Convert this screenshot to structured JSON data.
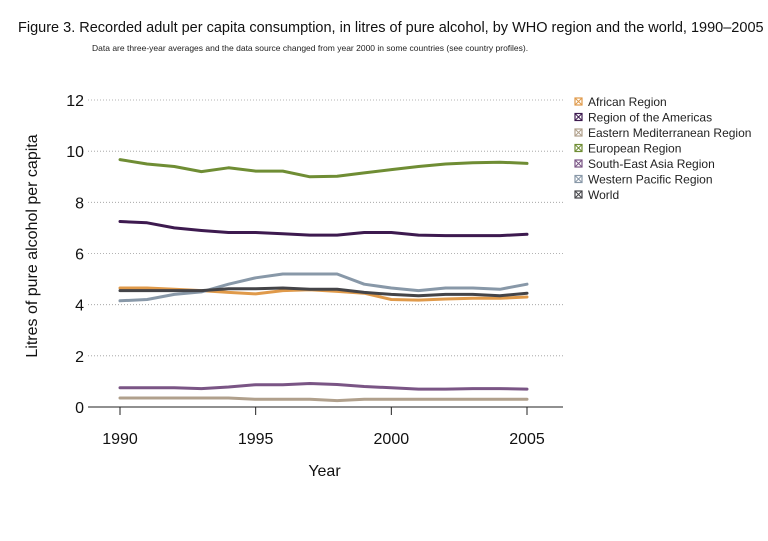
{
  "title": "Figure 3. Recorded adult per capita consumption, in litres of pure alcohol, by WHO region and the world, 1990–2005",
  "subtitle": "Data are three-year averages and the data source changed from year 2000 in some countries (see country profiles).",
  "chart_data": {
    "type": "line",
    "title": "Figure 3. Recorded adult per capita consumption, in litres of pure alcohol, by WHO region and the world, 1990–2005",
    "subtitle": "Data are three-year averages and the data source changed from year 2000 in some countries (see country profiles).",
    "xlabel": "Year",
    "ylabel": "Litres of pure alcohol per capita",
    "xlim": [
      1990,
      2005
    ],
    "ylim": [
      0,
      12
    ],
    "x_ticks": [
      1990,
      1995,
      2000,
      2005
    ],
    "y_ticks": [
      0,
      2,
      4,
      6,
      8,
      10,
      12
    ],
    "grid": "horizontal dotted",
    "legend_position": "right",
    "x": [
      1990,
      1991,
      1992,
      1993,
      1994,
      1995,
      1996,
      1997,
      1998,
      1999,
      2000,
      2001,
      2002,
      2003,
      2004,
      2005
    ],
    "series": [
      {
        "name": "African Region",
        "color": "#e09a4a",
        "values": [
          4.65,
          4.65,
          4.6,
          4.55,
          4.48,
          4.42,
          4.55,
          4.58,
          4.52,
          4.45,
          4.2,
          4.18,
          4.22,
          4.25,
          4.25,
          4.3
        ]
      },
      {
        "name": "Region of the Americas",
        "color": "#3d1a4f",
        "values": [
          7.25,
          7.2,
          7.0,
          6.9,
          6.82,
          6.82,
          6.77,
          6.72,
          6.72,
          6.82,
          6.82,
          6.72,
          6.7,
          6.7,
          6.7,
          6.75
        ]
      },
      {
        "name": "Eastern Mediterranean Region",
        "color": "#b0a08c",
        "values": [
          0.35,
          0.35,
          0.35,
          0.35,
          0.35,
          0.3,
          0.3,
          0.3,
          0.25,
          0.3,
          0.3,
          0.3,
          0.3,
          0.3,
          0.3,
          0.3
        ]
      },
      {
        "name": "European Region",
        "color": "#6f8d34",
        "values": [
          9.67,
          9.5,
          9.4,
          9.2,
          9.35,
          9.22,
          9.22,
          9.0,
          9.02,
          9.15,
          9.28,
          9.4,
          9.5,
          9.55,
          9.57,
          9.52
        ]
      },
      {
        "name": "South-East Asia Region",
        "color": "#7a5585",
        "values": [
          0.75,
          0.75,
          0.75,
          0.72,
          0.78,
          0.87,
          0.87,
          0.92,
          0.88,
          0.8,
          0.75,
          0.7,
          0.7,
          0.72,
          0.72,
          0.7
        ]
      },
      {
        "name": "Western Pacific Region",
        "color": "#8898a8",
        "values": [
          4.15,
          4.2,
          4.4,
          4.5,
          4.8,
          5.05,
          5.2,
          5.2,
          5.2,
          4.8,
          4.65,
          4.55,
          4.65,
          4.65,
          4.6,
          4.8
        ]
      },
      {
        "name": "World",
        "color": "#444448",
        "values": [
          4.55,
          4.55,
          4.55,
          4.55,
          4.62,
          4.62,
          4.65,
          4.6,
          4.6,
          4.48,
          4.4,
          4.35,
          4.4,
          4.4,
          4.35,
          4.45
        ]
      }
    ]
  }
}
